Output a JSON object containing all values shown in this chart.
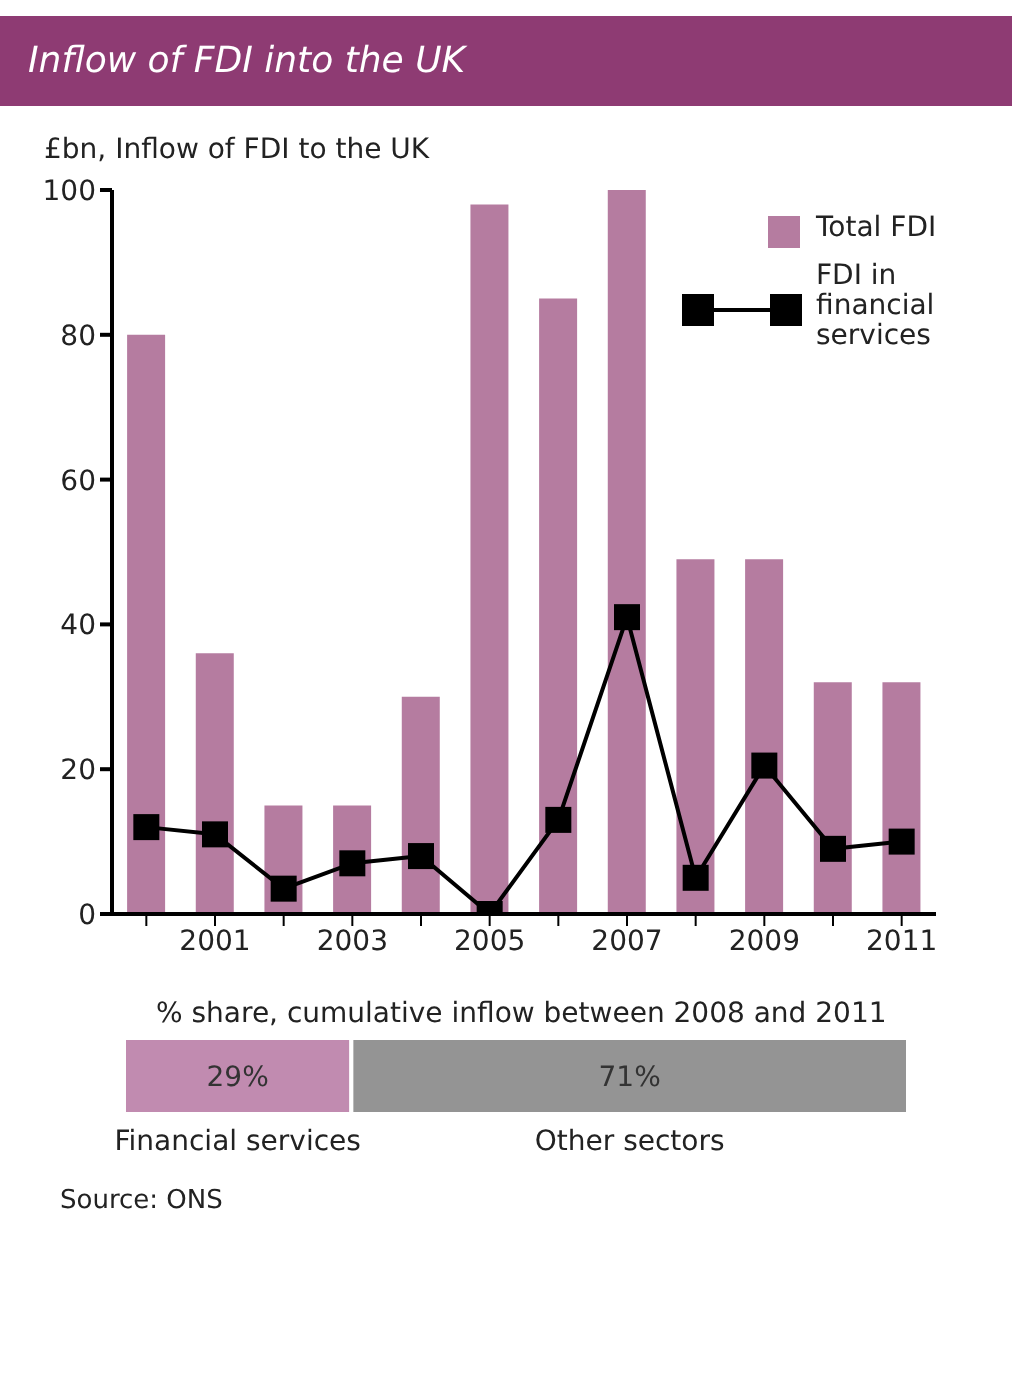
{
  "chart_data": [
    {
      "type": "bar",
      "title": "Inflow of FDI into the UK",
      "ylabel": "£bn, Inflow of FDI to the UK",
      "categories": [
        null,
        "2001",
        null,
        "2003",
        null,
        "2005",
        null,
        "2007",
        null,
        "2009",
        null,
        "2011"
      ],
      "series": [
        {
          "name": "Total FDI",
          "type": "bar",
          "color": "#b57ca0",
          "values": [
            80,
            36,
            15,
            15,
            30,
            98,
            85,
            100,
            49,
            49,
            32,
            32
          ]
        },
        {
          "name": "FDI in financial services",
          "type": "line",
          "color": "#000000",
          "marker": "square",
          "values": [
            12,
            11,
            3.5,
            7,
            8,
            0,
            13,
            41,
            5,
            20.5,
            9,
            10
          ]
        }
      ],
      "ylim": [
        0,
        100
      ],
      "yticks": [
        0,
        20,
        40,
        60,
        80,
        100
      ],
      "grid": false,
      "legend": "top right"
    },
    {
      "type": "bar",
      "orientation": "horizontal",
      "stacked": true,
      "title": "% share, cumulative inflow between 2008 and 2011",
      "categories": [
        null
      ],
      "tick_labels": false,
      "series": [
        {
          "name": "Financial services",
          "color": "#c18bb0",
          "values": [
            29
          ],
          "value_labels": [
            "29%"
          ]
        },
        {
          "name": "Other sectors",
          "color": "#949494",
          "values": [
            71
          ],
          "value_labels": [
            "71%"
          ]
        }
      ],
      "annotations": [
        "Source: ONS"
      ]
    }
  ]
}
